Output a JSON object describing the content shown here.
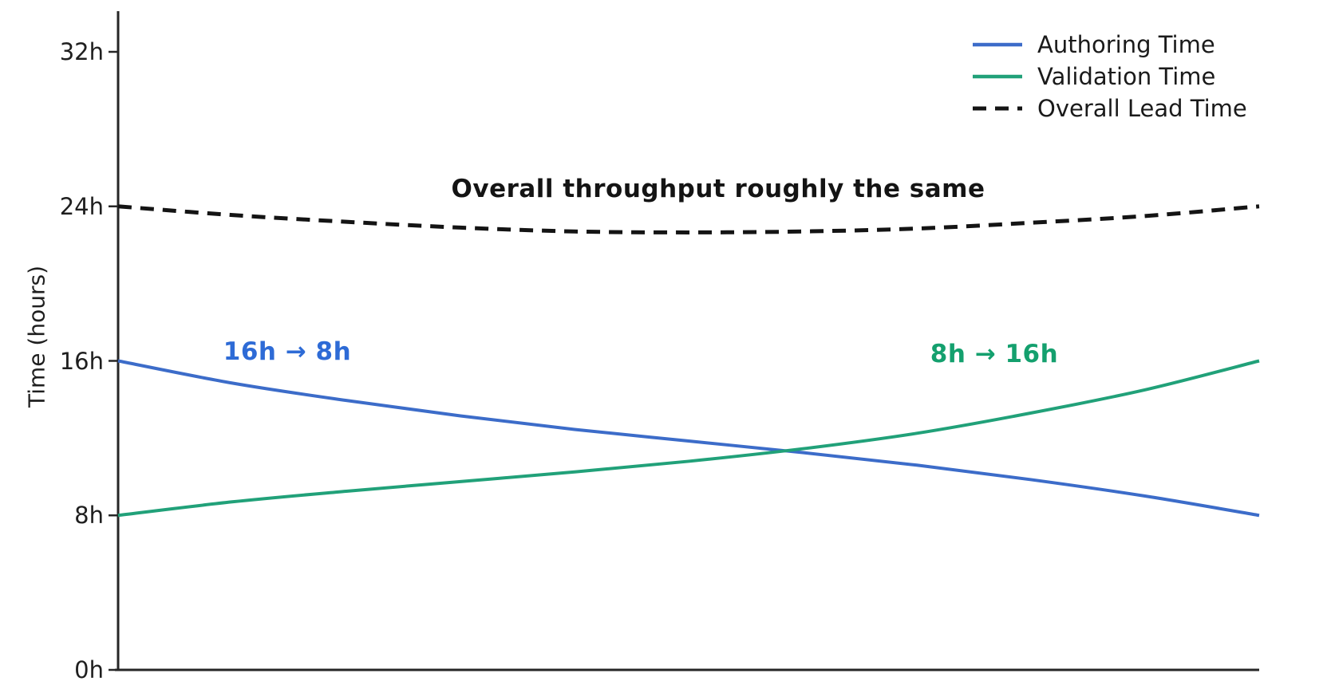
{
  "chart_data": {
    "type": "line",
    "title": "",
    "ylabel": "Time (hours)",
    "xlabel": "",
    "grid": false,
    "legend_position": "top-right",
    "ylim": [
      0,
      34
    ],
    "yticks": [
      {
        "value": 0,
        "label": "0h"
      },
      {
        "value": 8,
        "label": "8h"
      },
      {
        "value": 16,
        "label": "16h"
      },
      {
        "value": 24,
        "label": "24h"
      },
      {
        "value": 32,
        "label": "32h"
      }
    ],
    "x": [
      0,
      0.1,
      0.2,
      0.3,
      0.4,
      0.5,
      0.6,
      0.7,
      0.8,
      0.9,
      1
    ],
    "series": [
      {
        "name": "Authoring Time",
        "color": "#3c6cc9",
        "style": "solid",
        "start_label": "16h",
        "end_label": "8h",
        "values": [
          16,
          14.85,
          13.95,
          13.15,
          12.45,
          11.85,
          11.25,
          10.6,
          9.85,
          9.0,
          8.0
        ]
      },
      {
        "name": "Validation Time",
        "color": "#21a179",
        "style": "solid",
        "start_label": "8h",
        "end_label": "16h",
        "values": [
          8,
          8.7,
          9.25,
          9.75,
          10.25,
          10.8,
          11.45,
          12.25,
          13.3,
          14.5,
          16.0
        ]
      },
      {
        "name": "Overall Lead Time",
        "color": "#141414",
        "style": "dashed",
        "start_label": "24h",
        "end_label": "24h",
        "values": [
          24,
          23.55,
          23.2,
          22.9,
          22.7,
          22.65,
          22.7,
          22.85,
          23.15,
          23.5,
          24.0
        ]
      }
    ],
    "annotations": [
      {
        "text": "16h → 8h",
        "color": "#2e6bd6"
      },
      {
        "text": "8h → 16h",
        "color": "#14a06e"
      },
      {
        "text": "Overall throughput roughly the same",
        "color": "#141414"
      }
    ]
  }
}
